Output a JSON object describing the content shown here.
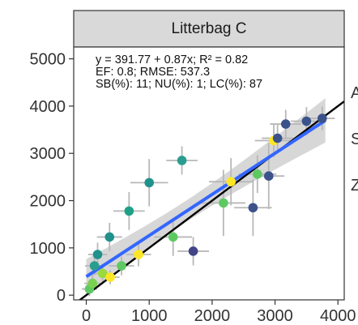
{
  "chart_data": {
    "type": "scatter",
    "title": "Litterbag C",
    "xlabel": "",
    "ylabel": "",
    "xlim": [
      -200,
      4100
    ],
    "ylim": [
      -100,
      5250
    ],
    "x_ticks": [
      0,
      1000,
      2000,
      3000,
      4000
    ],
    "y_ticks": [
      0,
      1000,
      2000,
      3000,
      4000,
      5000
    ],
    "x_tick_labels": [
      "0",
      "1000",
      "2000",
      "3000",
      "4000"
    ],
    "y_tick_labels": [
      "0",
      "1000",
      "2000",
      "3000",
      "4000",
      "5000"
    ],
    "grid": false,
    "annotations": [
      "y = 391.77 + 0.87x; R² = 0.82",
      "EF: 0.8; RMSE: 537.3",
      "SB(%): 11; NU(%): 1; LC(%): 87"
    ],
    "right_edge_labels": [
      "A",
      "S",
      "Z"
    ],
    "one_to_one_line": {
      "slope": 1,
      "intercept": 0,
      "color": "#000000"
    },
    "fit_line": {
      "intercept": 391.77,
      "slope": 0.87,
      "x_range": [
        0,
        3800
      ],
      "color": "#3366ff",
      "band_color": "#bdbdbd"
    },
    "points": [
      {
        "x": 50,
        "y": 130,
        "xerr": 120,
        "yerr": 150,
        "color": "#5ec962"
      },
      {
        "x": 100,
        "y": 250,
        "xerr": 130,
        "yerr": 180,
        "color": "#7ad151"
      },
      {
        "x": 130,
        "y": 620,
        "xerr": 150,
        "yerr": 200,
        "color": "#2a9d8f"
      },
      {
        "x": 180,
        "y": 860,
        "xerr": 150,
        "yerr": 250,
        "color": "#21918c"
      },
      {
        "x": 260,
        "y": 460,
        "xerr": 150,
        "yerr": 200,
        "color": "#9bd93c"
      },
      {
        "x": 370,
        "y": 1230,
        "xerr": 200,
        "yerr": 300,
        "color": "#21918c"
      },
      {
        "x": 380,
        "y": 380,
        "xerr": 150,
        "yerr": 150,
        "color": "#fde725"
      },
      {
        "x": 560,
        "y": 620,
        "xerr": 200,
        "yerr": 200,
        "color": "#5ec962"
      },
      {
        "x": 680,
        "y": 1780,
        "xerr": 250,
        "yerr": 400,
        "color": "#1fa187"
      },
      {
        "x": 830,
        "y": 860,
        "xerr": 200,
        "yerr": 250,
        "color": "#fde725"
      },
      {
        "x": 1000,
        "y": 2380,
        "xerr": 300,
        "yerr": 500,
        "color": "#21918c"
      },
      {
        "x": 1380,
        "y": 1230,
        "xerr": 300,
        "yerr": 400,
        "color": "#5ec962"
      },
      {
        "x": 1520,
        "y": 2850,
        "xerr": 250,
        "yerr": 300,
        "color": "#2a9d8f"
      },
      {
        "x": 1700,
        "y": 930,
        "xerr": 250,
        "yerr": 300,
        "color": "#414487"
      },
      {
        "x": 2180,
        "y": 1950,
        "xerr": 350,
        "yerr": 700,
        "color": "#5ec962"
      },
      {
        "x": 2300,
        "y": 2400,
        "xerr": 350,
        "yerr": 500,
        "color": "#fde725"
      },
      {
        "x": 2650,
        "y": 1850,
        "xerr": 300,
        "yerr": 600,
        "color": "#3b528b"
      },
      {
        "x": 2720,
        "y": 2560,
        "xerr": 300,
        "yerr": 400,
        "color": "#5ec962"
      },
      {
        "x": 2900,
        "y": 2520,
        "xerr": 250,
        "yerr": 700,
        "color": "#3b528b"
      },
      {
        "x": 2980,
        "y": 3270,
        "xerr": 300,
        "yerr": 350,
        "color": "#fde725"
      },
      {
        "x": 3040,
        "y": 3320,
        "xerr": 250,
        "yerr": 300,
        "color": "#3b528b"
      },
      {
        "x": 3170,
        "y": 3620,
        "xerr": 250,
        "yerr": 300,
        "color": "#3b528b"
      },
      {
        "x": 3500,
        "y": 3680,
        "xerr": 250,
        "yerr": 300,
        "color": "#3b528b"
      },
      {
        "x": 3750,
        "y": 3740,
        "xerr": 200,
        "yerr": 250,
        "color": "#3b528b"
      }
    ]
  }
}
